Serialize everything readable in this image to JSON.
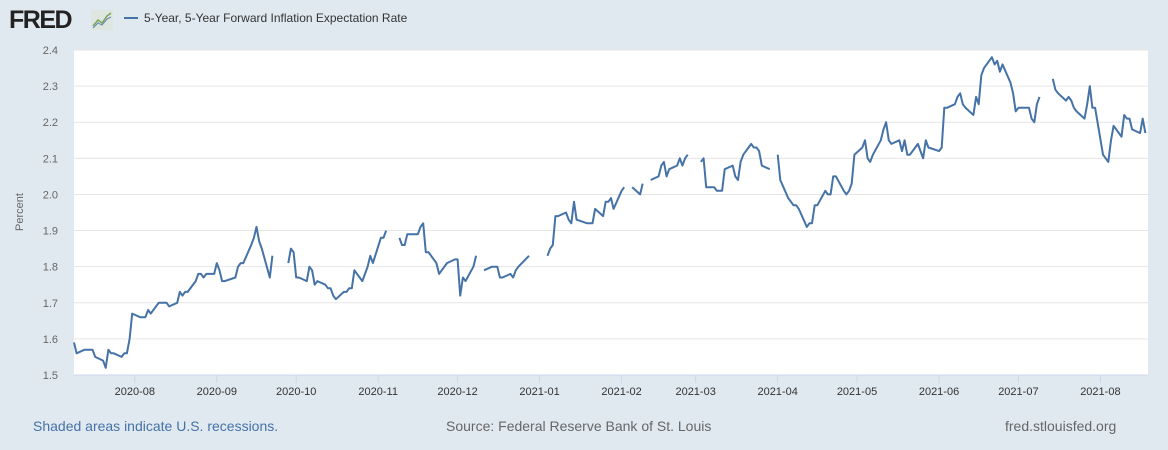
{
  "header": {
    "logo_text": "FRED",
    "legend_label": "5-Year, 5-Year Forward Inflation Expectation Rate"
  },
  "footer": {
    "recession_note": "Shaded areas indicate U.S. recessions.",
    "source": "Source: Federal Reserve Bank of St. Louis",
    "site": "fred.stlouisfed.org"
  },
  "colors": {
    "series": "#4572a7",
    "background": "#e1e9f0",
    "plot": "#ffffff",
    "grid": "#e6e6e6"
  },
  "chart_data": {
    "type": "line",
    "title": "5-Year, 5-Year Forward Inflation Expectation Rate",
    "xlabel": "",
    "ylabel": "Percent",
    "ylim": [
      1.5,
      2.4
    ],
    "xlim": [
      "2020-07-09",
      "2021-08-19"
    ],
    "grid": true,
    "legend": "top-left",
    "yticks": [
      "1.5",
      "1.6",
      "1.7",
      "1.8",
      "1.9",
      "2.0",
      "2.1",
      "2.2",
      "2.3",
      "2.4"
    ],
    "xticks": [
      "2020-08",
      "2020-09",
      "2020-10",
      "2020-11",
      "2020-12",
      "2021-01",
      "2021-02",
      "2021-03",
      "2021-04",
      "2021-05",
      "2021-06",
      "2021-07",
      "2021-08"
    ],
    "series": [
      {
        "name": "5-Year, 5-Year Forward Inflation Expectation Rate",
        "points": [
          [
            "2020-07-09",
            1.59
          ],
          [
            "2020-07-10",
            1.56
          ],
          [
            "2020-07-13",
            1.57
          ],
          [
            "2020-07-14",
            1.57
          ],
          [
            "2020-07-15",
            1.57
          ],
          [
            "2020-07-16",
            1.57
          ],
          [
            "2020-07-17",
            1.55
          ],
          [
            "2020-07-20",
            1.54
          ],
          [
            "2020-07-21",
            1.52
          ],
          [
            "2020-07-22",
            1.57
          ],
          [
            "2020-07-23",
            1.56
          ],
          [
            "2020-07-24",
            1.56
          ],
          [
            "2020-07-27",
            1.55
          ],
          [
            "2020-07-28",
            1.56
          ],
          [
            "2020-07-29",
            1.56
          ],
          [
            "2020-07-30",
            1.6
          ],
          [
            "2020-07-31",
            1.67
          ],
          [
            "2020-08-03",
            1.66
          ],
          [
            "2020-08-04",
            1.66
          ],
          [
            "2020-08-05",
            1.66
          ],
          [
            "2020-08-06",
            1.68
          ],
          [
            "2020-08-07",
            1.67
          ],
          [
            "2020-08-10",
            1.7
          ],
          [
            "2020-08-11",
            1.7
          ],
          [
            "2020-08-12",
            1.7
          ],
          [
            "2020-08-13",
            1.7
          ],
          [
            "2020-08-14",
            1.69
          ],
          [
            "2020-08-17",
            1.7
          ],
          [
            "2020-08-18",
            1.73
          ],
          [
            "2020-08-19",
            1.72
          ],
          [
            "2020-08-20",
            1.73
          ],
          [
            "2020-08-21",
            1.73
          ],
          [
            "2020-08-24",
            1.76
          ],
          [
            "2020-08-25",
            1.78
          ],
          [
            "2020-08-26",
            1.78
          ],
          [
            "2020-08-27",
            1.77
          ],
          [
            "2020-08-28",
            1.78
          ],
          [
            "2020-08-31",
            1.78
          ],
          [
            "2020-09-01",
            1.81
          ],
          [
            "2020-09-02",
            1.79
          ],
          [
            "2020-09-03",
            1.76
          ],
          [
            "2020-09-04",
            1.76
          ],
          [
            "2020-09-08",
            1.77
          ],
          [
            "2020-09-09",
            1.8
          ],
          [
            "2020-09-10",
            1.81
          ],
          [
            "2020-09-11",
            1.81
          ],
          [
            "2020-09-14",
            1.86
          ],
          [
            "2020-09-15",
            1.88
          ],
          [
            "2020-09-16",
            1.91
          ],
          [
            "2020-09-17",
            1.87
          ],
          [
            "2020-09-18",
            1.85
          ],
          [
            "2020-09-21",
            1.77
          ],
          [
            "2020-09-22",
            1.83
          ],
          [
            "2020-09-23",
            null
          ],
          [
            "2020-09-25",
            null
          ],
          [
            "2020-09-28",
            1.81
          ],
          [
            "2020-09-29",
            1.85
          ],
          [
            "2020-09-30",
            1.84
          ],
          [
            "2020-10-01",
            1.77
          ],
          [
            "2020-10-02",
            1.77
          ],
          [
            "2020-10-05",
            1.76
          ],
          [
            "2020-10-06",
            1.8
          ],
          [
            "2020-10-07",
            1.79
          ],
          [
            "2020-10-08",
            1.75
          ],
          [
            "2020-10-09",
            1.76
          ],
          [
            "2020-10-12",
            1.75
          ],
          [
            "2020-10-13",
            1.74
          ],
          [
            "2020-10-14",
            1.74
          ],
          [
            "2020-10-15",
            1.72
          ],
          [
            "2020-10-16",
            1.71
          ],
          [
            "2020-10-19",
            1.73
          ],
          [
            "2020-10-20",
            1.73
          ],
          [
            "2020-10-21",
            1.74
          ],
          [
            "2020-10-22",
            1.74
          ],
          [
            "2020-10-23",
            1.79
          ],
          [
            "2020-10-26",
            1.76
          ],
          [
            "2020-10-27",
            1.78
          ],
          [
            "2020-10-28",
            1.8
          ],
          [
            "2020-10-29",
            1.83
          ],
          [
            "2020-10-30",
            1.81
          ],
          [
            "2020-11-02",
            1.88
          ],
          [
            "2020-11-03",
            1.88
          ],
          [
            "2020-11-04",
            1.9
          ],
          [
            "2020-11-05",
            null
          ],
          [
            "2020-11-06",
            null
          ],
          [
            "2020-11-09",
            1.88
          ],
          [
            "2020-11-10",
            1.86
          ],
          [
            "2020-11-11",
            1.86
          ],
          [
            "2020-11-12",
            1.89
          ],
          [
            "2020-11-13",
            1.89
          ],
          [
            "2020-11-16",
            1.89
          ],
          [
            "2020-11-17",
            1.91
          ],
          [
            "2020-11-18",
            1.92
          ],
          [
            "2020-11-19",
            1.84
          ],
          [
            "2020-11-20",
            1.84
          ],
          [
            "2020-11-23",
            1.81
          ],
          [
            "2020-11-24",
            1.78
          ],
          [
            "2020-11-25",
            1.79
          ],
          [
            "2020-11-27",
            1.81
          ],
          [
            "2020-11-30",
            1.82
          ],
          [
            "2020-12-01",
            1.82
          ],
          [
            "2020-12-02",
            1.72
          ],
          [
            "2020-12-03",
            1.77
          ],
          [
            "2020-12-04",
            1.76
          ],
          [
            "2020-12-07",
            1.8
          ],
          [
            "2020-12-08",
            1.83
          ],
          [
            "2020-12-09",
            null
          ],
          [
            "2020-12-10",
            null
          ],
          [
            "2020-12-11",
            1.79
          ],
          [
            "2020-12-14",
            1.8
          ],
          [
            "2020-12-15",
            1.8
          ],
          [
            "2020-12-16",
            1.8
          ],
          [
            "2020-12-17",
            1.77
          ],
          [
            "2020-12-18",
            1.77
          ],
          [
            "2020-12-21",
            1.78
          ],
          [
            "2020-12-22",
            1.77
          ],
          [
            "2020-12-23",
            1.79
          ],
          [
            "2020-12-24",
            1.8
          ],
          [
            "2020-12-28",
            1.83
          ],
          [
            "2020-12-29",
            null
          ],
          [
            "2021-01-04",
            1.83
          ],
          [
            "2021-01-05",
            1.85
          ],
          [
            "2021-01-06",
            1.86
          ],
          [
            "2021-01-07",
            1.94
          ],
          [
            "2021-01-08",
            1.94
          ],
          [
            "2021-01-11",
            1.95
          ],
          [
            "2021-01-12",
            1.93
          ],
          [
            "2021-01-13",
            1.92
          ],
          [
            "2021-01-14",
            1.98
          ],
          [
            "2021-01-15",
            1.93
          ],
          [
            "2021-01-19",
            1.92
          ],
          [
            "2021-01-20",
            1.92
          ],
          [
            "2021-01-21",
            1.92
          ],
          [
            "2021-01-22",
            1.96
          ],
          [
            "2021-01-25",
            1.94
          ],
          [
            "2021-01-26",
            1.98
          ],
          [
            "2021-01-27",
            1.98
          ],
          [
            "2021-01-28",
            1.99
          ],
          [
            "2021-01-29",
            1.96
          ],
          [
            "2021-02-01",
            2.01
          ],
          [
            "2021-02-02",
            2.02
          ],
          [
            "2021-02-03",
            null
          ],
          [
            "2021-02-05",
            2.02
          ],
          [
            "2021-02-08",
            2.0
          ],
          [
            "2021-02-09",
            2.03
          ],
          [
            "2021-02-10",
            null
          ],
          [
            "2021-02-12",
            2.04
          ],
          [
            "2021-02-15",
            2.05
          ],
          [
            "2021-02-16",
            2.08
          ],
          [
            "2021-02-17",
            2.09
          ],
          [
            "2021-02-18",
            2.05
          ],
          [
            "2021-02-19",
            2.07
          ],
          [
            "2021-02-22",
            2.08
          ],
          [
            "2021-02-23",
            2.1
          ],
          [
            "2021-02-24",
            2.08
          ],
          [
            "2021-02-25",
            2.1
          ],
          [
            "2021-02-26",
            2.11
          ],
          [
            "2021-03-01",
            null
          ],
          [
            "2021-03-03",
            2.09
          ],
          [
            "2021-03-04",
            2.1
          ],
          [
            "2021-03-05",
            2.02
          ],
          [
            "2021-03-08",
            2.02
          ],
          [
            "2021-03-09",
            2.01
          ],
          [
            "2021-03-10",
            2.01
          ],
          [
            "2021-03-11",
            2.01
          ],
          [
            "2021-03-12",
            2.07
          ],
          [
            "2021-03-15",
            2.08
          ],
          [
            "2021-03-16",
            2.05
          ],
          [
            "2021-03-17",
            2.04
          ],
          [
            "2021-03-18",
            2.09
          ],
          [
            "2021-03-19",
            2.11
          ],
          [
            "2021-03-22",
            2.14
          ],
          [
            "2021-03-23",
            2.13
          ],
          [
            "2021-03-24",
            2.13
          ],
          [
            "2021-03-25",
            2.12
          ],
          [
            "2021-03-26",
            2.08
          ],
          [
            "2021-03-29",
            2.07
          ],
          [
            "2021-03-30",
            null
          ],
          [
            "2021-04-01",
            2.11
          ],
          [
            "2021-04-02",
            2.04
          ],
          [
            "2021-04-05",
            1.99
          ],
          [
            "2021-04-06",
            1.98
          ],
          [
            "2021-04-07",
            1.97
          ],
          [
            "2021-04-08",
            1.97
          ],
          [
            "2021-04-09",
            1.96
          ],
          [
            "2021-04-12",
            1.91
          ],
          [
            "2021-04-13",
            1.92
          ],
          [
            "2021-04-14",
            1.92
          ],
          [
            "2021-04-15",
            1.97
          ],
          [
            "2021-04-16",
            1.97
          ],
          [
            "2021-04-19",
            2.01
          ],
          [
            "2021-04-20",
            2.0
          ],
          [
            "2021-04-21",
            2.0
          ],
          [
            "2021-04-22",
            2.05
          ],
          [
            "2021-04-23",
            2.05
          ],
          [
            "2021-04-26",
            2.01
          ],
          [
            "2021-04-27",
            2.0
          ],
          [
            "2021-04-28",
            2.01
          ],
          [
            "2021-04-29",
            2.03
          ],
          [
            "2021-04-30",
            2.11
          ],
          [
            "2021-05-03",
            2.13
          ],
          [
            "2021-05-04",
            2.15
          ],
          [
            "2021-05-05",
            2.1
          ],
          [
            "2021-05-06",
            2.09
          ],
          [
            "2021-05-07",
            2.11
          ],
          [
            "2021-05-10",
            2.15
          ],
          [
            "2021-05-11",
            2.18
          ],
          [
            "2021-05-12",
            2.2
          ],
          [
            "2021-05-13",
            2.15
          ],
          [
            "2021-05-14",
            2.14
          ],
          [
            "2021-05-17",
            2.15
          ],
          [
            "2021-05-18",
            2.12
          ],
          [
            "2021-05-19",
            2.15
          ],
          [
            "2021-05-20",
            2.11
          ],
          [
            "2021-05-21",
            2.11
          ],
          [
            "2021-05-24",
            2.14
          ],
          [
            "2021-05-25",
            2.12
          ],
          [
            "2021-05-26",
            2.1
          ],
          [
            "2021-05-27",
            2.15
          ],
          [
            "2021-05-28",
            2.13
          ],
          [
            "2021-06-01",
            2.12
          ],
          [
            "2021-06-02",
            2.13
          ],
          [
            "2021-06-03",
            2.24
          ],
          [
            "2021-06-04",
            2.24
          ],
          [
            "2021-06-07",
            2.25
          ],
          [
            "2021-06-08",
            2.27
          ],
          [
            "2021-06-09",
            2.28
          ],
          [
            "2021-06-10",
            2.25
          ],
          [
            "2021-06-11",
            2.24
          ],
          [
            "2021-06-14",
            2.22
          ],
          [
            "2021-06-15",
            2.27
          ],
          [
            "2021-06-16",
            2.25
          ],
          [
            "2021-06-17",
            2.33
          ],
          [
            "2021-06-18",
            2.35
          ],
          [
            "2021-06-21",
            2.38
          ],
          [
            "2021-06-22",
            2.36
          ],
          [
            "2021-06-23",
            2.37
          ],
          [
            "2021-06-24",
            2.34
          ],
          [
            "2021-06-25",
            2.36
          ],
          [
            "2021-06-28",
            2.31
          ],
          [
            "2021-06-29",
            2.28
          ],
          [
            "2021-06-30",
            2.23
          ],
          [
            "2021-07-01",
            2.24
          ],
          [
            "2021-07-02",
            2.24
          ],
          [
            "2021-07-05",
            2.24
          ],
          [
            "2021-07-06",
            2.21
          ],
          [
            "2021-07-07",
            2.2
          ],
          [
            "2021-07-08",
            2.25
          ],
          [
            "2021-07-09",
            2.27
          ],
          [
            "2021-07-12",
            null
          ],
          [
            "2021-07-14",
            2.32
          ],
          [
            "2021-07-15",
            2.29
          ],
          [
            "2021-07-16",
            2.28
          ],
          [
            "2021-07-19",
            2.26
          ],
          [
            "2021-07-20",
            2.27
          ],
          [
            "2021-07-21",
            2.26
          ],
          [
            "2021-07-22",
            2.24
          ],
          [
            "2021-07-23",
            2.23
          ],
          [
            "2021-07-26",
            2.21
          ],
          [
            "2021-07-27",
            2.25
          ],
          [
            "2021-07-28",
            2.3
          ],
          [
            "2021-07-29",
            2.24
          ],
          [
            "2021-07-30",
            2.24
          ],
          [
            "2021-08-02",
            2.11
          ],
          [
            "2021-08-03",
            2.1
          ],
          [
            "2021-08-04",
            2.09
          ],
          [
            "2021-08-05",
            2.15
          ],
          [
            "2021-08-06",
            2.19
          ],
          [
            "2021-08-09",
            2.16
          ],
          [
            "2021-08-10",
            2.22
          ],
          [
            "2021-08-11",
            2.21
          ],
          [
            "2021-08-12",
            2.21
          ],
          [
            "2021-08-13",
            2.18
          ],
          [
            "2021-08-16",
            2.17
          ],
          [
            "2021-08-17",
            2.21
          ],
          [
            "2021-08-18",
            2.17
          ]
        ]
      }
    ]
  }
}
